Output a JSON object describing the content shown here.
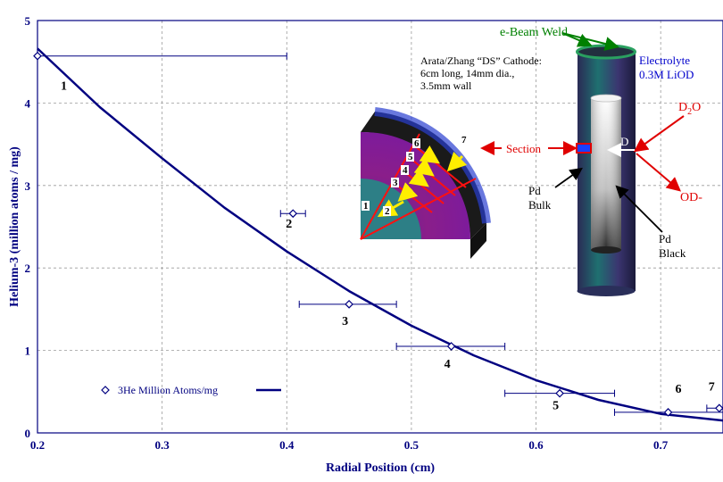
{
  "chart_data": {
    "type": "scatter",
    "xlabel": "Radial Position (cm)",
    "ylabel": "Helium-3 (million atoms / mg)",
    "xlim": [
      0.2,
      0.75
    ],
    "ylim": [
      0,
      5
    ],
    "x_ticks": [
      "0.2",
      "0.3",
      "0.4",
      "0.5",
      "0.6",
      "0.7"
    ],
    "y_ticks": [
      "0",
      "1",
      "2",
      "3",
      "4",
      "5"
    ],
    "grid": true,
    "legend_position": "bottom-left",
    "legend_label": "3He Million Atoms/mg",
    "series": [
      {
        "name": "3He Million Atoms/mg",
        "marker": "diamond",
        "color": "#000080",
        "points": [
          {
            "label": "1",
            "x": 0.2,
            "y": 4.57,
            "xerr_low": 0.2,
            "xerr_high": 0.4
          },
          {
            "label": "2",
            "x": 0.405,
            "y": 2.66,
            "xerr_low": 0.395,
            "xerr_high": 0.415
          },
          {
            "label": "3",
            "x": 0.45,
            "y": 1.56,
            "xerr_low": 0.41,
            "xerr_high": 0.488
          },
          {
            "label": "4",
            "x": 0.532,
            "y": 1.05,
            "xerr_low": 0.488,
            "xerr_high": 0.575
          },
          {
            "label": "5",
            "x": 0.619,
            "y": 0.48,
            "xerr_low": 0.575,
            "xerr_high": 0.663
          },
          {
            "label": "6",
            "x": 0.706,
            "y": 0.25,
            "xerr_low": 0.663,
            "xerr_high": 0.75
          },
          {
            "label": "7",
            "x": 0.747,
            "y": 0.3,
            "xerr_low": 0.737,
            "xerr_high": 0.75
          }
        ]
      },
      {
        "name": "fit",
        "type": "line",
        "color": "#000080",
        "x": [
          0.2,
          0.25,
          0.3,
          0.35,
          0.4,
          0.45,
          0.5,
          0.55,
          0.6,
          0.65,
          0.7,
          0.75
        ],
        "values": [
          4.66,
          3.95,
          3.33,
          2.73,
          2.2,
          1.72,
          1.3,
          0.94,
          0.64,
          0.4,
          0.23,
          0.15
        ]
      }
    ]
  },
  "annotations": {
    "ebeam": "e-Beam Weld",
    "electrolyte_1": "Electrolyte",
    "electrolyte_2": "0.3M LiOD",
    "cathode_1": "Arata/Zhang “DS” Cathode:",
    "cathode_2": "6cm long, 14mm dia.,",
    "cathode_3": "3.5mm wall",
    "d2o_main": "D",
    "d2o_sub": "2",
    "d2o_end": "O",
    "od": "OD-",
    "d_label": "D",
    "section": "Section",
    "pd_bulk_1": "Pd",
    "pd_bulk_2": "Bulk",
    "pd_black_1": "Pd",
    "pd_black_2": "Black"
  },
  "colors": {
    "axis": "#000080",
    "series": "#000080",
    "ebeam": "#008000",
    "red": "#e00000",
    "blue_text": "#0000cc"
  }
}
